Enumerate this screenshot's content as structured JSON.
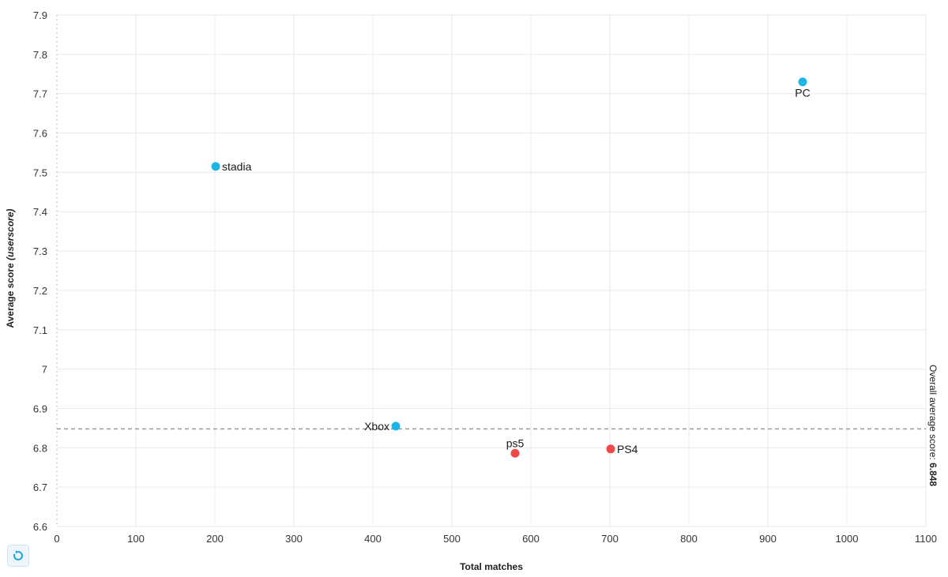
{
  "chart_data": {
    "type": "scatter",
    "xlabel": "Total matches",
    "ylabel": "Average score",
    "ylabel_suffix": "(userscore)",
    "xlim": [
      0,
      1100
    ],
    "ylim": [
      6.6,
      7.9
    ],
    "x_ticks": [
      0,
      100,
      200,
      300,
      400,
      500,
      600,
      700,
      800,
      900,
      1000,
      1100
    ],
    "y_ticks": [
      6.6,
      6.7,
      6.8,
      6.9,
      7.0,
      7.1,
      7.2,
      7.3,
      7.4,
      7.5,
      7.6,
      7.7,
      7.8,
      7.9
    ],
    "y_tick_labels": [
      "6.6",
      "6.7",
      "6.8",
      "6.9",
      "7",
      "7.1",
      "7.2",
      "7.3",
      "7.4",
      "7.5",
      "7.6",
      "7.7",
      "7.8",
      "7.9"
    ],
    "grid": true,
    "points": [
      {
        "label": "stadia",
        "x": 201,
        "y": 7.515,
        "color": "#1fb4e6",
        "label_pos": "right"
      },
      {
        "label": "PC",
        "x": 944,
        "y": 7.73,
        "color": "#1fb4e6",
        "label_pos": "below"
      },
      {
        "label": "Xbox",
        "x": 429,
        "y": 6.855,
        "color": "#1fb4e6",
        "label_pos": "left"
      },
      {
        "label": "ps5",
        "x": 580,
        "y": 6.786,
        "color": "#f04848",
        "label_pos": "above"
      },
      {
        "label": "PS4",
        "x": 701,
        "y": 6.797,
        "color": "#f04848",
        "label_pos": "right"
      }
    ],
    "reference_line": {
      "y": 6.848,
      "label": "Overall average score:",
      "value_label": "6.848",
      "style": "dashed",
      "color": "#9a9a9a"
    }
  },
  "controls": {
    "reset_icon": "reset-zoom-icon",
    "reset_color": "#1fa3dc"
  }
}
